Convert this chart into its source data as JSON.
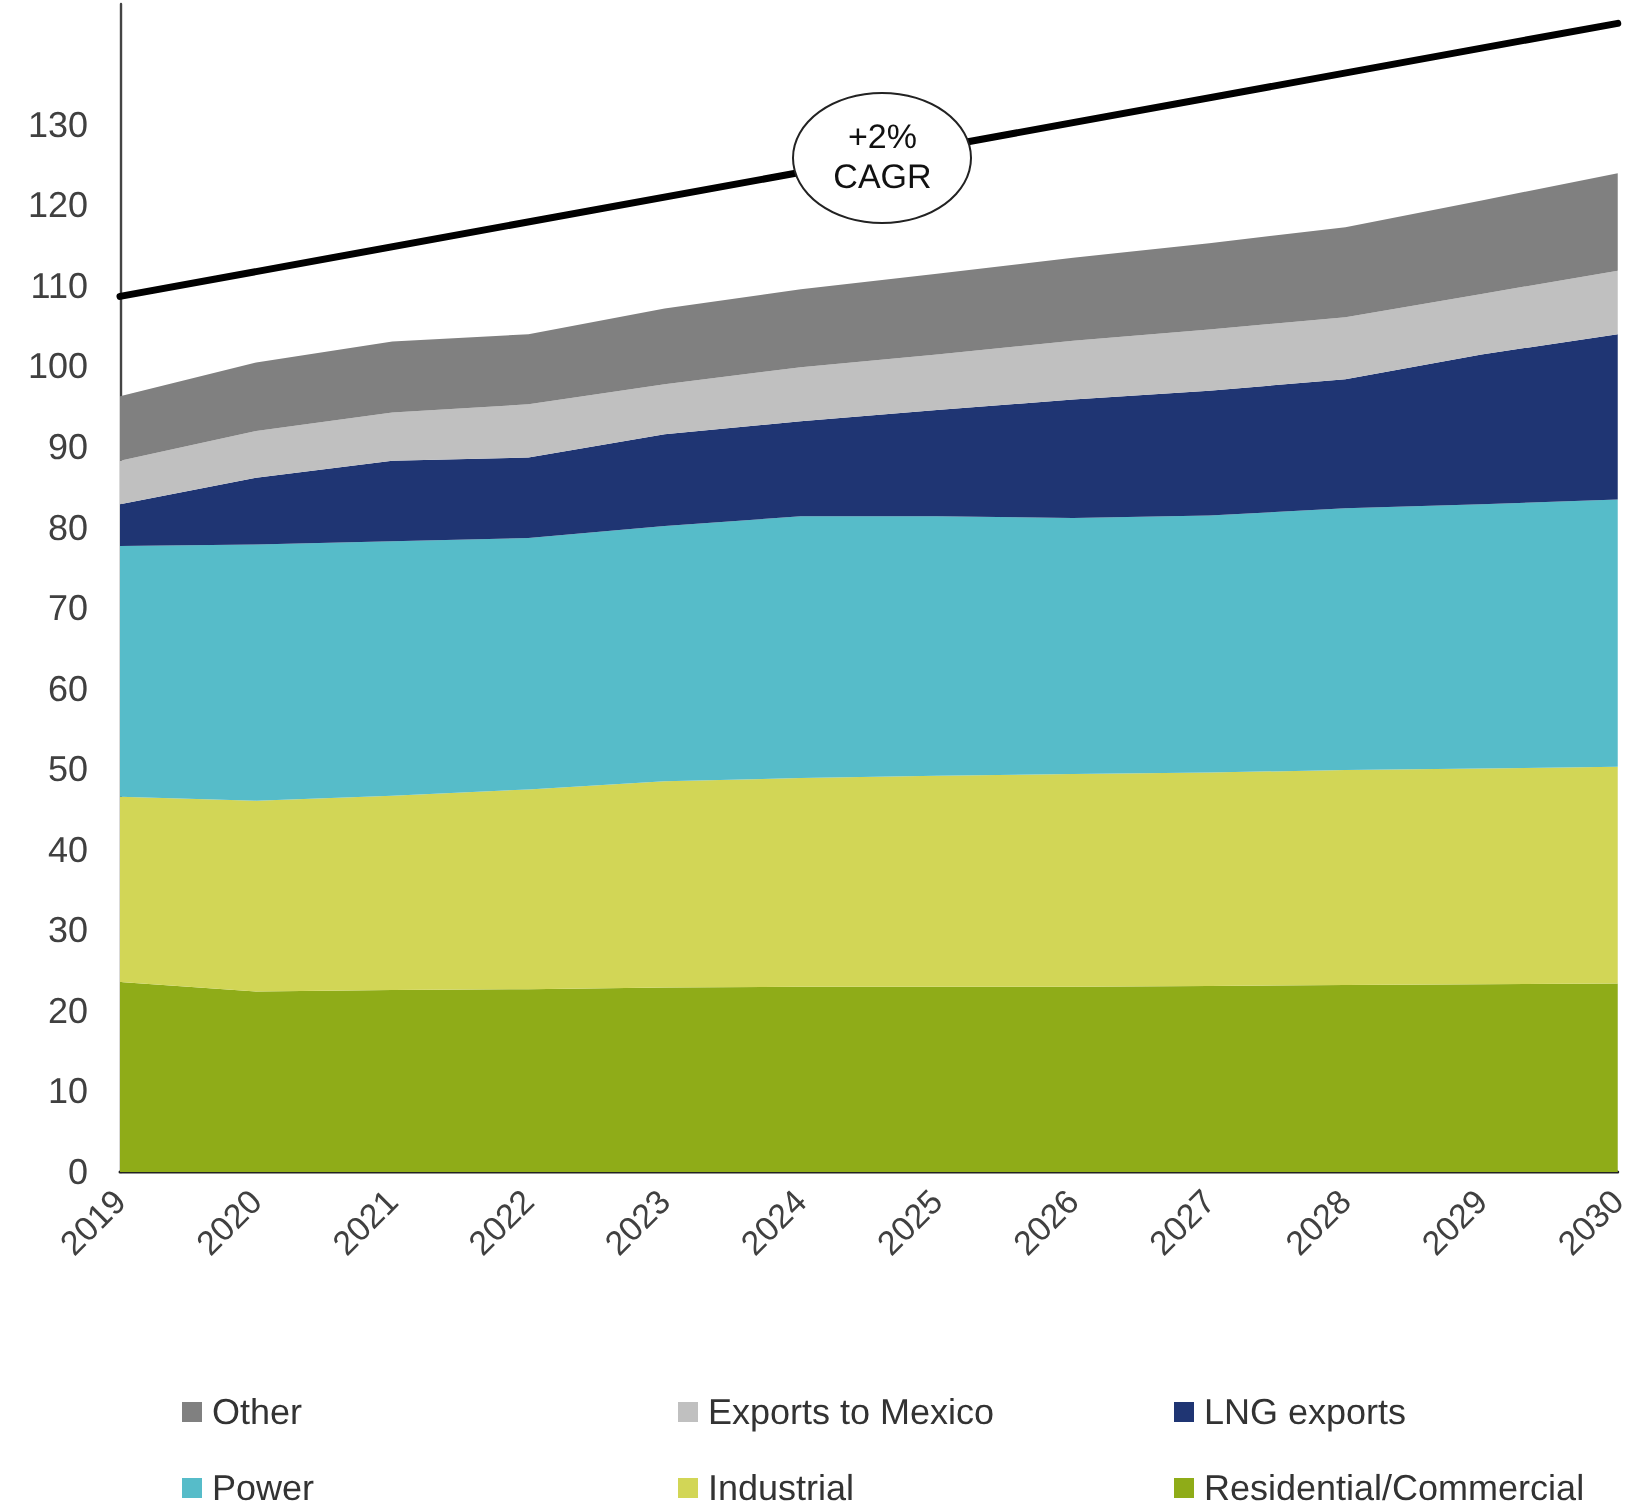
{
  "chart_data": {
    "type": "area",
    "stacked": true,
    "x": [
      2019,
      2020,
      2021,
      2022,
      2023,
      2024,
      2025,
      2026,
      2027,
      2028,
      2029,
      2030
    ],
    "xlim": [
      2019,
      2030
    ],
    "xticks": [
      2019,
      2020,
      2021,
      2022,
      2023,
      2024,
      2025,
      2026,
      2027,
      2028,
      2029,
      2030
    ],
    "ylim": [
      0,
      145
    ],
    "yticks": [
      0,
      10,
      20,
      30,
      40,
      50,
      60,
      70,
      80,
      90,
      100,
      110,
      120,
      130
    ],
    "grid": false,
    "legend": "bottom",
    "marker": "none",
    "annotations": [
      {
        "text": "+2% CAGR",
        "x": 2024.6,
        "y": 126
      }
    ],
    "series": [
      {
        "name": "Residential/Commercial",
        "color": "#8fac18",
        "values": [
          23.6,
          22.4,
          22.6,
          22.7,
          22.9,
          23.0,
          23.0,
          23.0,
          23.1,
          23.2,
          23.3,
          23.4
        ]
      },
      {
        "name": "Industrial",
        "color": "#d2d656",
        "values": [
          23.0,
          23.7,
          24.1,
          24.8,
          25.6,
          25.9,
          26.2,
          26.4,
          26.5,
          26.7,
          26.8,
          26.9
        ]
      },
      {
        "name": "Power",
        "color": "#56bcc9",
        "values": [
          31.1,
          31.8,
          31.6,
          31.2,
          31.7,
          32.5,
          32.2,
          31.8,
          31.9,
          32.5,
          32.8,
          33.2
        ]
      },
      {
        "name": "LNG exports",
        "color": "#1f3573",
        "values": [
          5.2,
          8.3,
          10.0,
          10.0,
          11.4,
          11.8,
          13.2,
          14.7,
          15.5,
          16.0,
          18.6,
          20.5
        ]
      },
      {
        "name": "Exports to Mexico",
        "color": "#c0c0c0",
        "values": [
          5.4,
          5.8,
          6.0,
          6.6,
          6.2,
          6.7,
          6.9,
          7.3,
          7.6,
          7.7,
          7.5,
          7.9
        ]
      },
      {
        "name": "Other",
        "color": "#808080",
        "values": [
          8.0,
          8.5,
          8.8,
          8.7,
          9.4,
          9.7,
          10.0,
          10.3,
          10.7,
          11.2,
          11.6,
          12.1
        ]
      },
      {
        "type": "line",
        "color": "#000000",
        "line_style": "solid",
        "x": [
          2019,
          2030
        ],
        "values": [
          108.7,
          142.6
        ]
      }
    ]
  }
}
